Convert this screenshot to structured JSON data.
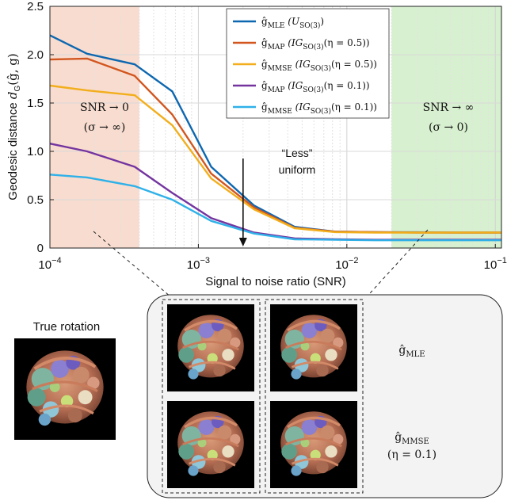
{
  "chart_data": {
    "type": "line",
    "xlabel": "Signal to noise ratio (SNR)",
    "ylabel": "Geodesic distance d_G(ĝ, g)",
    "x_scale": "log",
    "xlim": [
      0.0001,
      0.11
    ],
    "ylim": [
      0,
      2.5
    ],
    "x_ticks": [
      {
        "value": 0.0001,
        "label": "10",
        "exp": "−4"
      },
      {
        "value": 0.001,
        "label": "10",
        "exp": "−3"
      },
      {
        "value": 0.01,
        "label": "10",
        "exp": "−2"
      },
      {
        "value": 0.1,
        "label": "10",
        "exp": "−1"
      }
    ],
    "y_ticks": [
      0,
      0.5,
      1.0,
      1.5,
      2.0,
      2.5
    ],
    "y_tick_labels": [
      "0",
      "0.5",
      "1.0",
      "1.5",
      "2.0",
      "2.5"
    ],
    "grid": true,
    "legend_position": "top-center",
    "x": [
      0.0001,
      0.000178,
      0.000373,
      0.000667,
      0.00122,
      0.00237,
      0.00445,
      0.00835,
      0.0157,
      0.0294,
      0.0552,
      0.11
    ],
    "series": [
      {
        "name": "ĝ_MLE (U_SO(3))",
        "color": "#0d67b0",
        "values": [
          2.2,
          2.01,
          1.9,
          1.62,
          0.84,
          0.44,
          0.22,
          0.17,
          0.165,
          0.163,
          0.16,
          0.16
        ]
      },
      {
        "name": "ĝ_MAP (IG_SO(3)(η = 0.5))",
        "color": "#d2561f",
        "values": [
          1.95,
          1.96,
          1.78,
          1.38,
          0.77,
          0.42,
          0.21,
          0.17,
          0.165,
          0.16,
          0.16,
          0.16
        ]
      },
      {
        "name": "ĝ_MMSE (IG_SO(3)(η = 0.5))",
        "color": "#f2ae1c",
        "values": [
          1.68,
          1.63,
          1.58,
          1.27,
          0.72,
          0.4,
          0.205,
          0.165,
          0.16,
          0.16,
          0.16,
          0.16
        ]
      },
      {
        "name": "ĝ_MAP (IG_SO(3)(η = 0.1))",
        "color": "#7434a0",
        "values": [
          1.08,
          1.0,
          0.84,
          0.57,
          0.31,
          0.16,
          0.1,
          0.09,
          0.085,
          0.085,
          0.085,
          0.085
        ]
      },
      {
        "name": "ĝ_MMSE (IG_SO(3)(η = 0.1))",
        "color": "#2fb1e8",
        "values": [
          0.76,
          0.73,
          0.64,
          0.5,
          0.28,
          0.15,
          0.09,
          0.085,
          0.08,
          0.08,
          0.08,
          0.08
        ]
      }
    ],
    "regions": [
      {
        "x_from": 0.0001,
        "x_to": 0.0004,
        "color": "#f8dccf"
      },
      {
        "x_from": 0.02,
        "x_to": 0.11,
        "color": "#d7f0cf"
      }
    ],
    "annotations": {
      "low_snr_line1": "SNR → 0",
      "low_snr_line2": "(σ → ∞)",
      "high_snr_line1": "SNR  → ∞",
      "high_snr_line2": "(σ → 0)",
      "less_uniform_line1": "“Less”",
      "less_uniform_line2": "uniform",
      "arrow_at_x": 0.002
    },
    "legend": [
      {
        "hat": "ĝ",
        "sub": "MLE",
        "param": "(U",
        "param_sub": "SO(3)",
        "param_tail": ")"
      },
      {
        "hat": "ĝ",
        "sub": "MAP",
        "param": "(IG",
        "param_sub": "SO(3)",
        "param_tail": "(η = 0.5))"
      },
      {
        "hat": "ĝ",
        "sub": "MMSE",
        "param": "(IG",
        "param_sub": "SO(3)",
        "param_tail": "(η = 0.5))"
      },
      {
        "hat": "ĝ",
        "sub": "MAP",
        "param": "(IG",
        "param_sub": "SO(3)",
        "param_tail": "(η = 0.1))"
      },
      {
        "hat": "ĝ",
        "sub": "MMSE",
        "param": "(IG",
        "param_sub": "SO(3)",
        "param_tail": "(η = 0.1))"
      }
    ]
  },
  "true_rotation_label": "True rotation",
  "panel": {
    "row1_label": "ĝ",
    "row1_sub": "MLE",
    "row2_label": "ĝ",
    "row2_sub": "MMSE",
    "row2_extra": "(η = 0.1)"
  },
  "colors": {
    "molecule_body": "#c07a5c",
    "molecule_bg": "#000000",
    "panel_bg": "#f3f3f3"
  }
}
